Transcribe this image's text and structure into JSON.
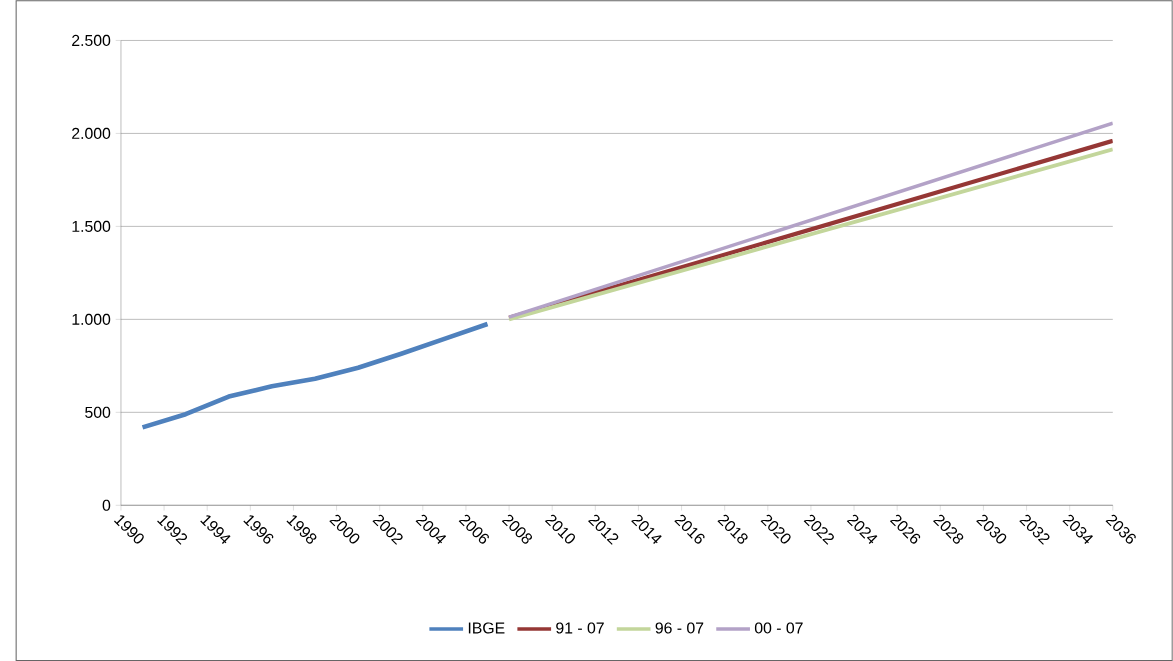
{
  "chart_data": {
    "type": "line",
    "xlim": [
      1990,
      2036
    ],
    "xticks": [
      1990,
      1992,
      1994,
      1996,
      1998,
      2000,
      2002,
      2004,
      2006,
      2008,
      2010,
      2012,
      2014,
      2016,
      2018,
      2020,
      2022,
      2024,
      2026,
      2028,
      2030,
      2032,
      2034,
      2036
    ],
    "ylim": [
      0,
      2500
    ],
    "yticks": [
      0,
      500,
      {
        "value": 1000,
        "label": "1.000"
      },
      {
        "value": 1500,
        "label": "1.500"
      },
      {
        "value": 2000,
        "label": "2.000"
      },
      {
        "value": 2500,
        "label": "2.500"
      }
    ],
    "grid": "y",
    "legend": "bottom",
    "series": [
      {
        "name": "IBGE",
        "color": "#4f81bd",
        "x": [
          1991,
          1993,
          1995,
          1997,
          1999,
          2001,
          2003,
          2005,
          2007
        ],
        "values": [
          419,
          490,
          585,
          640,
          680,
          740,
          815,
          895,
          975
        ]
      },
      {
        "name": "91 - 07",
        "color": "#953735",
        "x": [
          2008,
          2036
        ],
        "values": [
          1008,
          1960
        ]
      },
      {
        "name": "96 - 07",
        "color": "#c3d69b",
        "x": [
          2008,
          2036
        ],
        "values": [
          1000,
          1915
        ]
      },
      {
        "name": "00 - 07",
        "color": "#b3a2c7",
        "x": [
          2008,
          2036
        ],
        "values": [
          1012,
          2055
        ]
      }
    ]
  }
}
